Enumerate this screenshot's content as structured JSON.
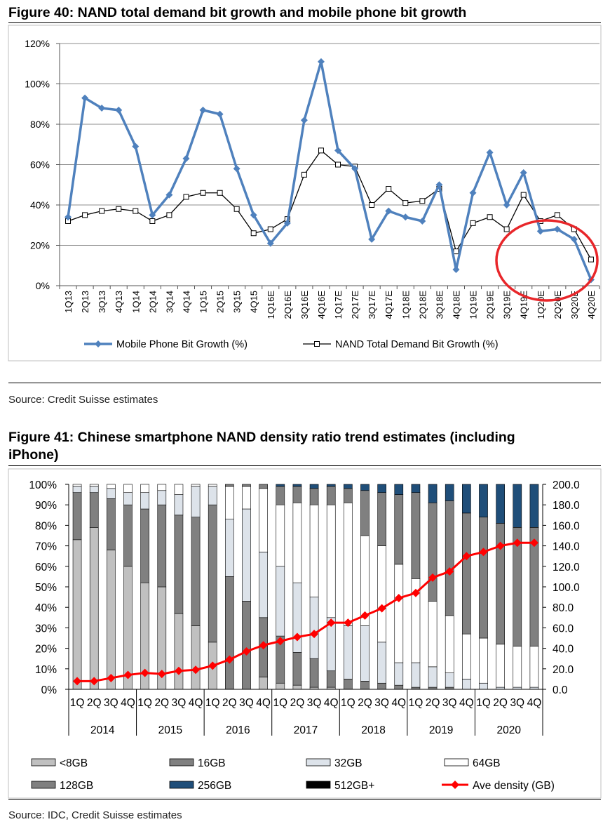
{
  "figure40": {
    "title": "Figure 40: NAND total demand bit growth and mobile phone bit growth",
    "source": "Source: Credit Suisse estimates"
  },
  "figure41": {
    "title_line1": "Figure 41: Chinese smartphone NAND density ratio trend estimates  (including",
    "title_line2": "iPhone)",
    "source": "Source: IDC, Credit Suisse estimates"
  },
  "colors": {
    "mobile_line": "#4f81bd",
    "nand_line": "#000000",
    "highlight_circle": "#e8262a",
    "seg_lt8": "#c0c0c0",
    "seg_16": "#808080",
    "seg_32": "#dde3ea",
    "seg_64": "#ffffff",
    "seg_128": "#808080",
    "seg_256": "#1f4e79",
    "seg_512": "#000000",
    "avg_density": "#ff0000"
  },
  "chart_data": [
    {
      "type": "line",
      "categories": [
        "1Q13",
        "2Q13",
        "3Q13",
        "4Q13",
        "1Q14",
        "2Q14",
        "3Q14",
        "4Q14",
        "1Q15",
        "2Q15",
        "3Q15",
        "4Q15",
        "1Q16E",
        "2Q16E",
        "3Q16E",
        "4Q16E",
        "1Q17E",
        "2Q17E",
        "3Q17E",
        "4Q17E",
        "1Q18E",
        "2Q18E",
        "3Q18E",
        "4Q18E",
        "1Q19E",
        "2Q19E",
        "3Q19E",
        "4Q19E",
        "1Q20E",
        "2Q20E",
        "3Q20E",
        "4Q20E"
      ],
      "series": [
        {
          "name": "Mobile Phone Bit Growth (%)",
          "values": [
            34,
            93,
            88,
            87,
            69,
            35,
            45,
            63,
            87,
            85,
            58,
            35,
            21,
            31,
            82,
            111,
            67,
            58,
            23,
            37,
            34,
            32,
            50,
            8,
            46,
            66,
            40,
            56,
            27,
            28,
            23,
            3
          ]
        },
        {
          "name": "NAND Total Demand Bit Growth (%)",
          "values": [
            32,
            35,
            37,
            38,
            37,
            32,
            35,
            44,
            46,
            46,
            38,
            26,
            28,
            33,
            55,
            67,
            60,
            59,
            40,
            48,
            41,
            42,
            48,
            17,
            31,
            34,
            28,
            45,
            32,
            35,
            28,
            13
          ]
        }
      ],
      "y_ticks": [
        "0%",
        "20%",
        "40%",
        "60%",
        "80%",
        "100%",
        "120%"
      ],
      "ylim": [
        0,
        120
      ],
      "grid": "horizontal",
      "legend": "bottom",
      "annotation": "red ellipse around 1Q20E-4Q20E"
    },
    {
      "type": "bar",
      "subtype": "stacked-100",
      "quarter_labels": [
        "1Q",
        "2Q",
        "3Q",
        "4Q"
      ],
      "years": [
        "2014",
        "2015",
        "2016",
        "2017",
        "2018",
        "2019",
        "2020"
      ],
      "segments": [
        "<8GB",
        "16GB",
        "32GB",
        "64GB",
        "128GB",
        "256GB",
        "512GB+"
      ],
      "shares": [
        [
          73,
          23,
          3,
          1,
          0,
          0,
          0
        ],
        [
          79,
          17,
          3,
          1,
          0,
          0,
          0
        ],
        [
          68,
          25,
          5,
          2,
          0,
          0,
          0
        ],
        [
          60,
          30,
          6,
          4,
          0,
          0,
          0
        ],
        [
          52,
          36,
          8,
          4,
          0,
          0,
          0
        ],
        [
          50,
          40,
          7,
          3,
          0,
          0,
          0
        ],
        [
          37,
          48,
          10,
          5,
          0,
          0,
          0
        ],
        [
          31,
          53,
          15,
          1,
          0,
          0,
          0
        ],
        [
          23,
          67,
          9,
          1,
          0,
          0,
          0
        ],
        [
          0,
          55,
          28,
          16,
          1,
          0,
          0
        ],
        [
          0,
          43,
          45,
          11,
          1,
          0,
          0
        ],
        [
          6,
          29,
          32,
          31,
          2,
          0,
          0
        ],
        [
          3,
          23,
          34,
          30,
          9,
          1,
          0
        ],
        [
          2,
          16,
          34,
          39,
          8,
          1,
          0
        ],
        [
          1,
          14,
          30,
          45,
          8,
          2,
          0
        ],
        [
          1,
          8,
          26,
          55,
          9,
          1,
          0
        ],
        [
          0,
          5,
          26,
          60,
          7,
          2,
          0
        ],
        [
          0,
          4,
          27,
          44,
          22,
          3,
          0
        ],
        [
          0,
          3,
          20,
          47,
          26,
          4,
          0
        ],
        [
          0,
          2,
          11,
          48,
          34,
          5,
          0
        ],
        [
          0,
          1,
          12,
          41,
          42,
          4,
          0
        ],
        [
          0,
          1,
          10,
          32,
          48,
          9,
          0
        ],
        [
          0,
          1,
          7,
          28,
          56,
          8,
          0
        ],
        [
          0,
          0,
          5,
          22,
          59,
          14,
          0
        ],
        [
          0,
          0,
          3,
          22,
          59,
          16,
          0
        ],
        [
          0,
          0,
          1,
          21,
          59,
          19,
          0
        ],
        [
          0,
          0,
          1,
          20,
          58,
          21,
          0
        ],
        [
          0,
          0,
          1,
          20,
          58,
          21,
          0
        ]
      ],
      "avg_density_name": "Ave density (GB)",
      "avg_density": [
        8,
        8,
        11,
        14,
        16,
        15,
        18,
        19,
        23,
        29,
        37,
        43,
        47,
        51,
        54,
        65,
        65,
        72,
        79,
        89,
        94,
        109,
        115,
        130,
        134,
        140,
        143,
        143
      ],
      "y_left_ticks": [
        "0%",
        "10%",
        "20%",
        "30%",
        "40%",
        "50%",
        "60%",
        "70%",
        "80%",
        "90%",
        "100%"
      ],
      "y_right_ticks": [
        "0.0",
        "20.0",
        "40.0",
        "60.0",
        "80.0",
        "100.0",
        "120.0",
        "140.0",
        "160.0",
        "180.0",
        "200.0"
      ],
      "y_right_lim": [
        0,
        200
      ],
      "legend": "bottom"
    }
  ]
}
